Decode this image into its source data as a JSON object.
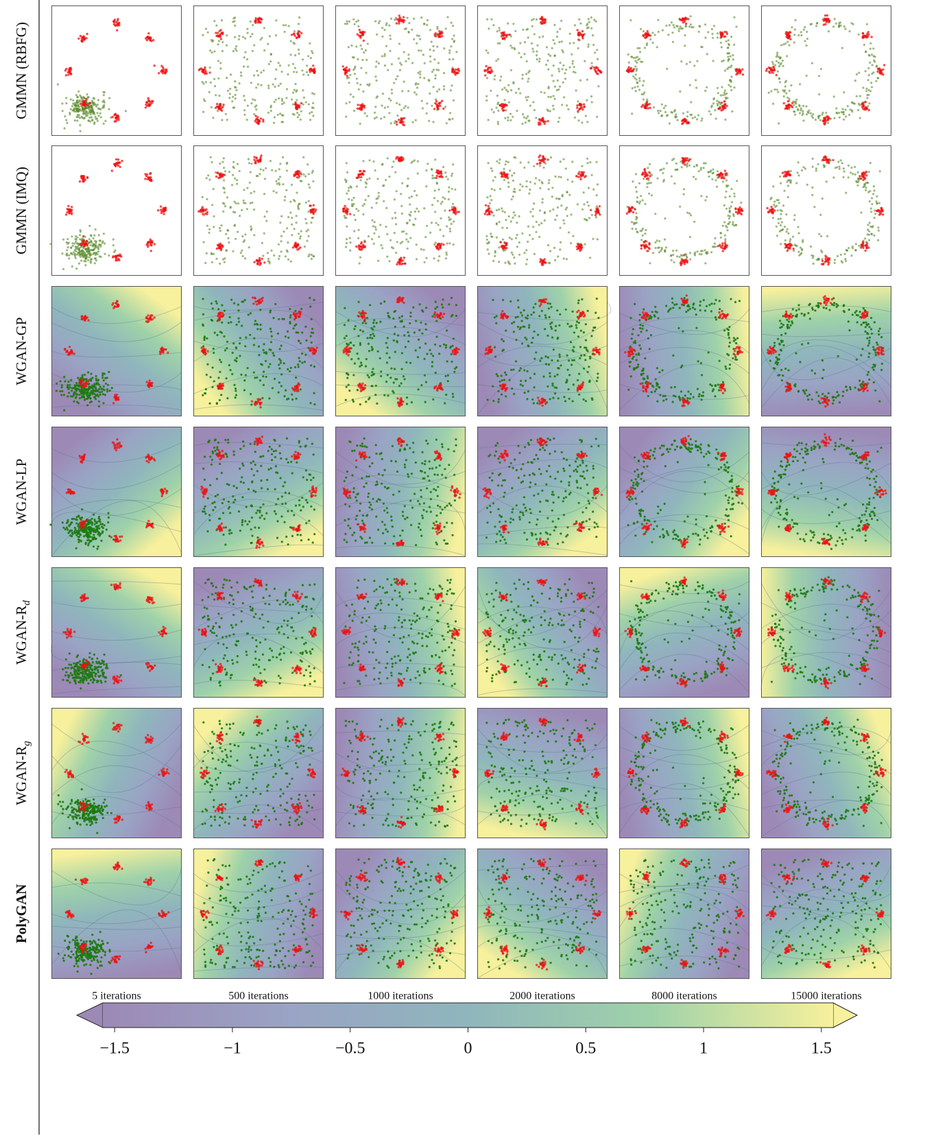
{
  "rows": [
    {
      "label": "GMMN (RBFG)",
      "contour": false
    },
    {
      "label": "GMMN (IMQ)",
      "contour": false
    },
    {
      "label": "WGAN-GP",
      "contour": true
    },
    {
      "label": "WGAN-LP",
      "contour": true
    },
    {
      "label": "WGAN-R",
      "subscript": "d",
      "contour": true
    },
    {
      "label": "WGAN-R",
      "subscript": "g",
      "contour": true
    },
    {
      "label": "PolyGAN",
      "bold": true,
      "contour": true
    }
  ],
  "columns": [
    "5 iterations",
    "500 iterations",
    "1000 iterations",
    "2000 iterations",
    "8000 iterations",
    "15000 iterations"
  ],
  "colorbar": {
    "lim": [
      -1.55,
      1.55
    ],
    "ticks": [
      {
        "value": -1.5,
        "label": "−1.5"
      },
      {
        "value": -1,
        "label": "−1"
      },
      {
        "value": -0.5,
        "label": "−0.5"
      },
      0,
      0.5,
      1,
      1.5
    ],
    "colors": [
      "#9c89b6",
      "#9aa3c4",
      "#8fb6bc",
      "#9fd2a9",
      "#f7f09c"
    ]
  }
}
